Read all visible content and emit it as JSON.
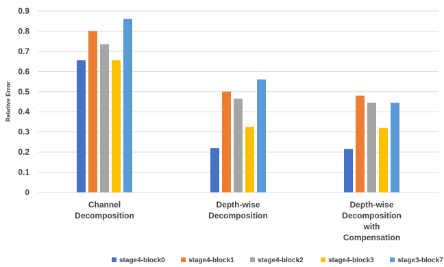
{
  "chart_data": {
    "type": "bar",
    "ylabel": "Relative Error",
    "xlabel": "",
    "ylim": [
      0,
      0.9
    ],
    "y_ticks": [
      "0",
      "0.1",
      "0.2",
      "0.3",
      "0.4",
      "0.5",
      "0.6",
      "0.7",
      "0.8",
      "0.9"
    ],
    "grid": true,
    "legend_position": "bottom",
    "categories": [
      [
        "Channel",
        "Decomposition"
      ],
      [
        "Depth-wise",
        "Decomposition"
      ],
      [
        "Depth-wise",
        "Decomposition",
        "with",
        "Compensation"
      ]
    ],
    "series": [
      {
        "name": "stage4-block0",
        "color": "#4472c4",
        "values": [
          0.655,
          0.22,
          0.215
        ]
      },
      {
        "name": "stage4-block1",
        "color": "#ed7d31",
        "values": [
          0.8,
          0.5,
          0.48
        ]
      },
      {
        "name": "stage4-block2",
        "color": "#a5a5a5",
        "values": [
          0.735,
          0.465,
          0.445
        ]
      },
      {
        "name": "stage4-block3",
        "color": "#ffc000",
        "values": [
          0.655,
          0.325,
          0.32
        ]
      },
      {
        "name": "stage3-block7",
        "color": "#5b9bd5",
        "values": [
          0.86,
          0.56,
          0.445
        ]
      }
    ]
  }
}
